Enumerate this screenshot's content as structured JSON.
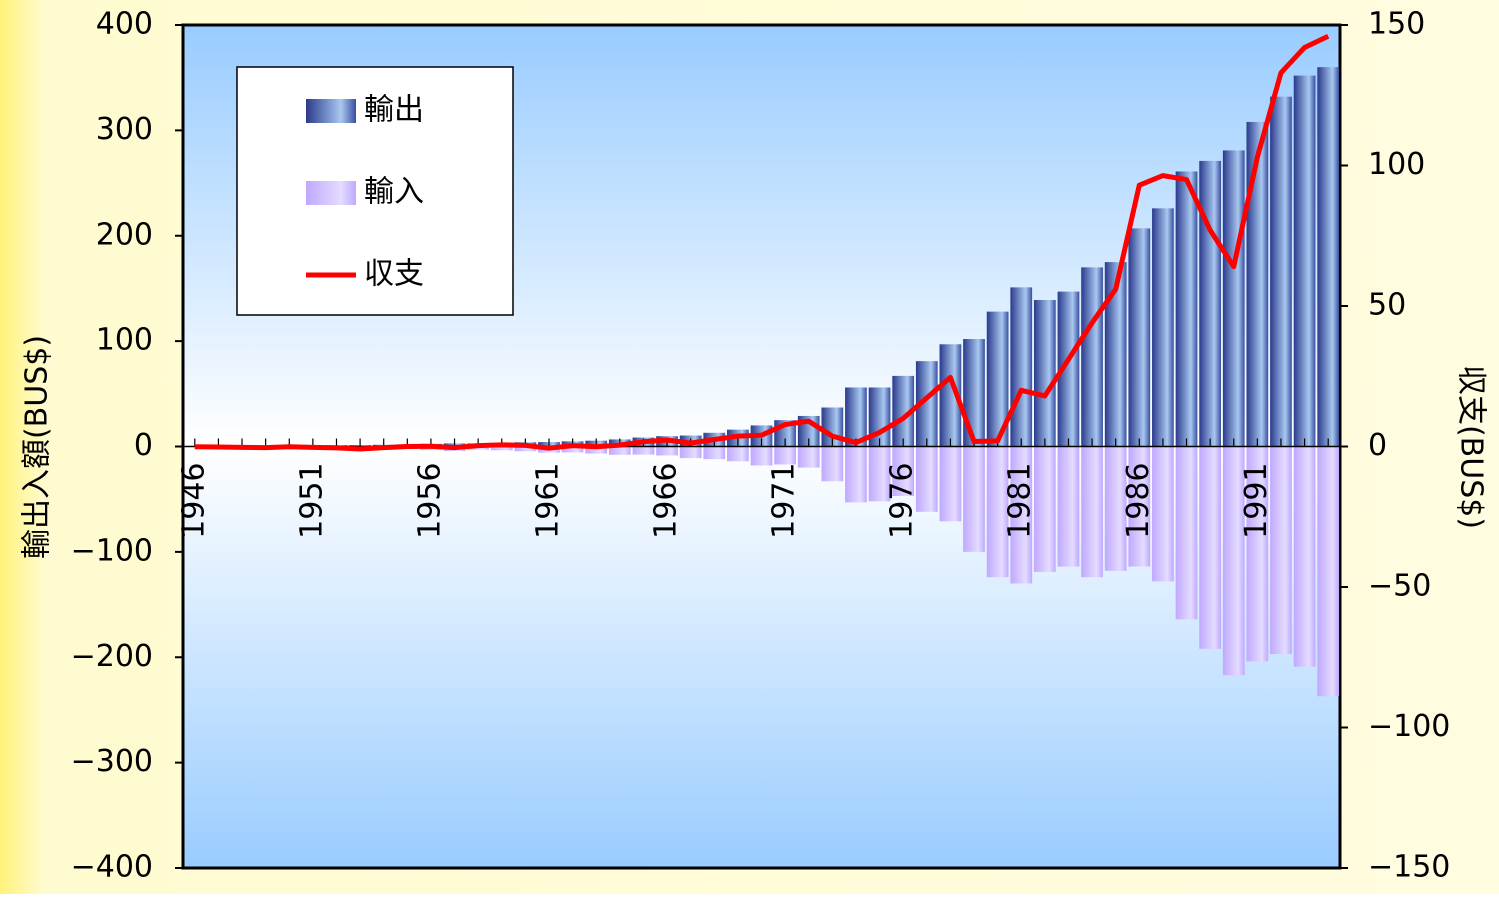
{
  "chart_data": {
    "type": "bar",
    "y_label": "輸出入額(BUS$)",
    "y2_label": "収支(BUS$)",
    "categories": [
      "1946",
      null,
      null,
      null,
      null,
      "1951",
      null,
      null,
      null,
      null,
      "1956",
      null,
      null,
      null,
      null,
      "1961",
      null,
      null,
      null,
      null,
      "1966",
      null,
      null,
      null,
      null,
      "1971",
      null,
      null,
      null,
      null,
      "1976",
      null,
      null,
      null,
      null,
      "1981",
      null,
      null,
      null,
      null,
      "1986",
      null,
      null,
      null,
      null,
      "1991",
      null,
      null,
      null
    ],
    "series": [
      {
        "name": "輸出",
        "type": "bar",
        "color": "#3a4fa0",
        "values": [
          0.1,
          0.1,
          0.3,
          0.5,
          0.8,
          1.4,
          1.3,
          1.3,
          1.6,
          2,
          2.5,
          2.9,
          2.9,
          3.5,
          4,
          4.2,
          4.9,
          5.5,
          6.7,
          8.5,
          9.8,
          10.4,
          13,
          16,
          20,
          25,
          29,
          37,
          56,
          56,
          67,
          81,
          97,
          102,
          128,
          151,
          139,
          147,
          170,
          175,
          207,
          226,
          261,
          271,
          281,
          308,
          332,
          352,
          360
        ]
      },
      {
        "name": "輸入",
        "type": "bar",
        "color": "#c9b3ff",
        "values": [
          -0.3,
          -0.5,
          -0.7,
          -0.9,
          -1,
          -2,
          -2,
          -2.4,
          -2.4,
          -2.5,
          -3.2,
          -4.3,
          -3,
          -3.6,
          -4.5,
          -5.8,
          -5.6,
          -6.7,
          -7.9,
          -7.7,
          -8.5,
          -11,
          -12,
          -14,
          -18,
          -17,
          -20,
          -33,
          -53,
          -52,
          -47,
          -62,
          -71,
          -100,
          -124,
          -130,
          -119,
          -114,
          -124,
          -118,
          -114,
          -128,
          -164,
          -192,
          -217,
          -204,
          -197,
          -209,
          -237
        ]
      },
      {
        "name": "収支",
        "type": "line",
        "axis": "y2",
        "color": "#ff0000",
        "values": [
          -0.1,
          -0.2,
          -0.3,
          -0.4,
          -0.1,
          -0.3,
          -0.5,
          -0.9,
          -0.4,
          0,
          0.1,
          -0.4,
          0.3,
          0.6,
          0.4,
          -0.6,
          0.3,
          -0.1,
          0.5,
          1.7,
          2.3,
          1.2,
          2.5,
          3.7,
          4,
          7.8,
          9,
          3.7,
          1.4,
          5,
          10,
          17.3,
          24.6,
          1.8,
          2,
          20,
          18,
          31,
          44,
          56,
          93,
          96.4,
          95,
          77,
          64,
          103,
          133,
          142,
          146
        ]
      }
    ],
    "ylim": [
      -400,
      400
    ],
    "yticks": [
      400,
      300,
      200,
      100,
      0,
      {
        "value": -100,
        "label": "−100"
      },
      {
        "value": -200,
        "label": "−200"
      },
      {
        "value": -300,
        "label": "−300"
      },
      {
        "value": -400,
        "label": "−400"
      }
    ],
    "y2lim": [
      -150,
      150
    ],
    "y2ticks": [
      150,
      100,
      50,
      0,
      {
        "value": -50,
        "label": "−50"
      },
      {
        "value": -100,
        "label": "−100"
      },
      {
        "value": -150,
        "label": "−150"
      }
    ],
    "legend": "upper left"
  }
}
